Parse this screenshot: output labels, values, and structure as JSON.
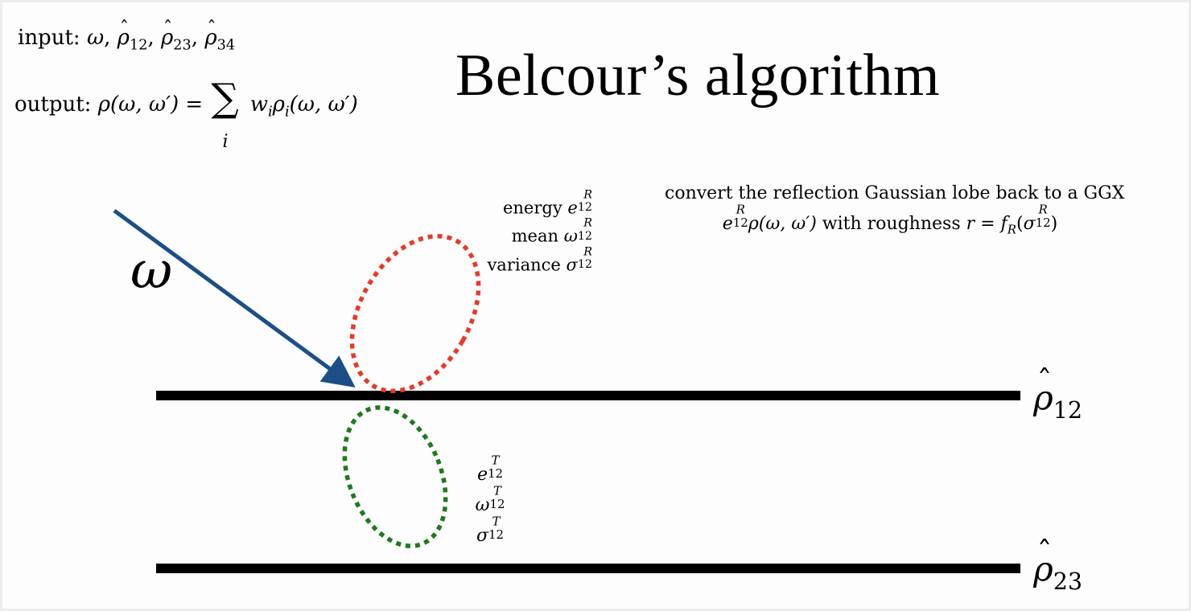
{
  "input": {
    "prefix": "input:",
    "omega": "ω",
    "rho": "ρ",
    "sub_12": "12",
    "sub_23": "23",
    "sub_34": "34"
  },
  "output": {
    "prefix": "output:",
    "lhs": "ρ(ω, ω′) =",
    "sum": "∑",
    "sum_index": "i",
    "w": "w",
    "w_sub": "i",
    "rho": "ρ",
    "rho_sub": "i",
    "args": "(ω, ω′)"
  },
  "title": "Belcour’s algorithm",
  "convert": {
    "line1": "convert the reflection Gaussian lobe back to a GGX",
    "e": "e",
    "sup_R": "R",
    "sub_12": "12",
    "rho_args": "ρ(ω, ω′)",
    "with_text": "with roughness",
    "r_eq": "r = f",
    "f_sub": "R",
    "sigma": "σ"
  },
  "reflection_lobe": {
    "energy_label": "energy",
    "mean_label": "mean",
    "variance_label": "variance",
    "e": "e",
    "omega": "ω",
    "sigma": "σ",
    "sup": "R",
    "sub": "12",
    "color": "#e63a2a"
  },
  "transmission_lobe": {
    "e": "e",
    "omega": "ω",
    "sigma": "σ",
    "sup": "T",
    "sub": "12",
    "color": "#1d7a1d"
  },
  "incident": {
    "label": "ω",
    "color": "#1b4f86"
  },
  "layers": [
    {
      "symbol": "ρ",
      "sub": "12"
    },
    {
      "symbol": "ρ",
      "sub": "23"
    }
  ]
}
